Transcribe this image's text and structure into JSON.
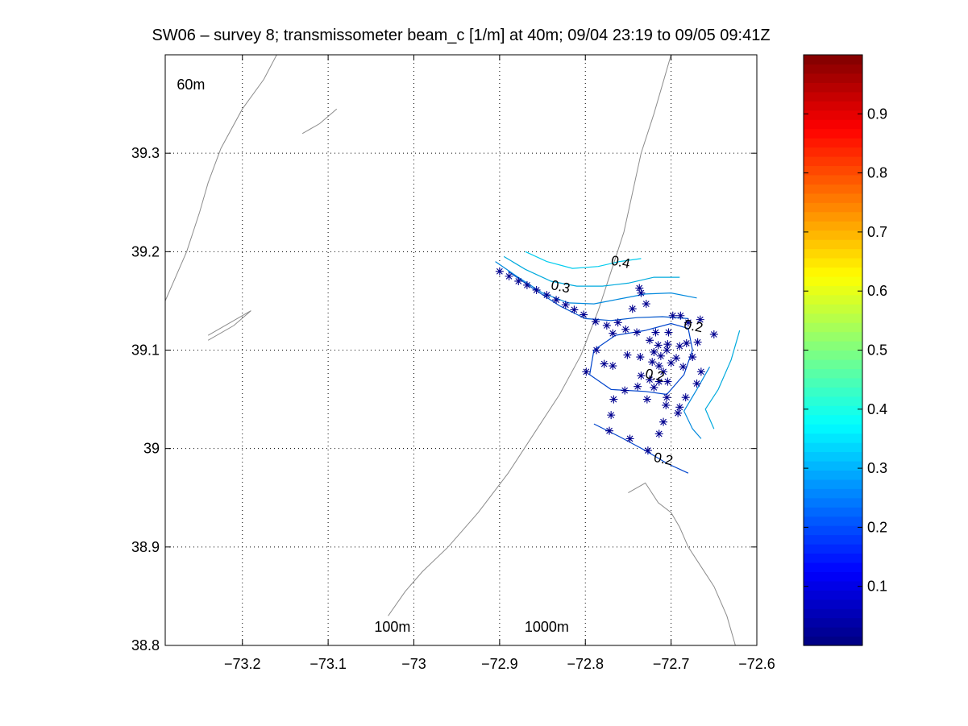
{
  "chart_data": {
    "type": "contour",
    "title": "SW06 – survey 8; transmissometer beam_c [1/m] at 40m; 09/04 23:19 to 09/05 09:41Z",
    "xlabel": "",
    "ylabel": "",
    "xlim": [
      -73.29,
      -72.6
    ],
    "ylim": [
      38.8,
      39.4
    ],
    "grid": true,
    "x_ticks": [
      -73.2,
      -73.1,
      -73,
      -72.9,
      -72.8,
      -72.7,
      -72.6
    ],
    "x_tick_labels": [
      "−73.2",
      "−73.1",
      "−73",
      "−72.9",
      "−72.8",
      "−72.7",
      "−72.6"
    ],
    "y_ticks": [
      38.8,
      38.9,
      39,
      39.1,
      39.2,
      39.3
    ],
    "y_tick_labels": [
      "38.8",
      "38.9",
      "39",
      "39.1",
      "39.2",
      "39.3"
    ],
    "colorbar": {
      "colormap": "jet",
      "range": [
        0,
        1
      ],
      "ticks": [
        0.1,
        0.2,
        0.3,
        0.4,
        0.5,
        0.6,
        0.7,
        0.8,
        0.9
      ],
      "tick_labels": [
        "0.1",
        "0.2",
        "0.3",
        "0.4",
        "0.5",
        "0.6",
        "0.7",
        "0.8",
        "0.9"
      ]
    },
    "isobath_labels": [
      {
        "text": "60m",
        "x": -73.26,
        "y": 39.365
      },
      {
        "text": "100m",
        "x": -73.025,
        "y": 38.814
      },
      {
        "text": "1000m",
        "x": -72.845,
        "y": 38.814
      }
    ],
    "isobaths": [
      {
        "name": "60m",
        "points": [
          [
            -73.29,
            39.15
          ],
          [
            -73.265,
            39.2
          ],
          [
            -73.25,
            39.24
          ],
          [
            -73.24,
            39.27
          ],
          [
            -73.225,
            39.305
          ],
          [
            -73.2,
            39.345
          ],
          [
            -73.175,
            39.375
          ],
          [
            -73.16,
            39.4
          ]
        ]
      },
      {
        "name": "shelf-shoal",
        "points": [
          [
            -73.24,
            39.11
          ],
          [
            -73.21,
            39.125
          ],
          [
            -73.19,
            39.14
          ],
          [
            -73.21,
            39.13
          ],
          [
            -73.24,
            39.115
          ]
        ]
      },
      {
        "name": "shelf-shoal-2",
        "points": [
          [
            -73.13,
            39.32
          ],
          [
            -73.11,
            39.33
          ],
          [
            -73.09,
            39.345
          ]
        ]
      },
      {
        "name": "100m",
        "points": [
          [
            -73.03,
            38.83
          ],
          [
            -73.01,
            38.855
          ],
          [
            -72.99,
            38.875
          ],
          [
            -72.96,
            38.9
          ],
          [
            -72.925,
            38.935
          ],
          [
            -72.89,
            38.975
          ],
          [
            -72.86,
            39.015
          ],
          [
            -72.83,
            39.055
          ],
          [
            -72.805,
            39.095
          ],
          [
            -72.785,
            39.14
          ],
          [
            -72.77,
            39.18
          ],
          [
            -72.755,
            39.22
          ],
          [
            -72.745,
            39.26
          ],
          [
            -72.735,
            39.3
          ],
          [
            -72.72,
            39.34
          ],
          [
            -72.71,
            39.37
          ],
          [
            -72.7,
            39.4
          ]
        ]
      },
      {
        "name": "1000m",
        "points": [
          [
            -72.75,
            38.955
          ],
          [
            -72.73,
            38.965
          ],
          [
            -72.715,
            38.945
          ],
          [
            -72.7,
            38.935
          ],
          [
            -72.69,
            38.92
          ],
          [
            -72.68,
            38.9
          ],
          [
            -72.665,
            38.88
          ],
          [
            -72.65,
            38.86
          ],
          [
            -72.635,
            38.83
          ],
          [
            -72.625,
            38.8
          ]
        ]
      }
    ],
    "contours": [
      {
        "level": 0.4,
        "color": "#00ccee",
        "points": [
          [
            -72.87,
            39.2
          ],
          [
            -72.845,
            39.19
          ],
          [
            -72.815,
            39.183
          ],
          [
            -72.785,
            39.185
          ],
          [
            -72.76,
            39.19
          ],
          [
            -72.735,
            39.193
          ]
        ]
      },
      {
        "level": 0.35,
        "color": "#00aadd",
        "points": [
          [
            -72.895,
            39.195
          ],
          [
            -72.87,
            39.182
          ],
          [
            -72.84,
            39.17
          ],
          [
            -72.81,
            39.165
          ],
          [
            -72.78,
            39.165
          ],
          [
            -72.75,
            39.168
          ],
          [
            -72.72,
            39.174
          ],
          [
            -72.69,
            39.174
          ]
        ]
      },
      {
        "level": 0.3,
        "color": "#0088dd",
        "points": [
          [
            -72.905,
            39.19
          ],
          [
            -72.88,
            39.175
          ],
          [
            -72.85,
            39.158
          ],
          [
            -72.82,
            39.148
          ],
          [
            -72.79,
            39.147
          ],
          [
            -72.76,
            39.152
          ],
          [
            -72.73,
            39.157
          ],
          [
            -72.7,
            39.158
          ],
          [
            -72.67,
            39.153
          ]
        ]
      },
      {
        "level": 0.25,
        "color": "#0055cc",
        "points": [
          [
            -72.89,
            39.18
          ],
          [
            -72.86,
            39.162
          ],
          [
            -72.83,
            39.145
          ],
          [
            -72.8,
            39.132
          ],
          [
            -72.77,
            39.13
          ],
          [
            -72.74,
            39.133
          ],
          [
            -72.71,
            39.134
          ],
          [
            -72.68,
            39.132
          ]
        ]
      },
      {
        "level": 0.2,
        "color": "#0044cc",
        "points": [
          [
            -72.73,
            39.12
          ],
          [
            -72.7,
            39.127
          ],
          [
            -72.68,
            39.122
          ],
          [
            -72.675,
            39.1
          ],
          [
            -72.685,
            39.075
          ],
          [
            -72.705,
            39.055
          ],
          [
            -72.73,
            39.058
          ],
          [
            -72.77,
            39.06
          ],
          [
            -72.795,
            39.075
          ],
          [
            -72.79,
            39.1
          ],
          [
            -72.765,
            39.115
          ],
          [
            -72.73,
            39.12
          ]
        ]
      },
      {
        "level": 0.2,
        "color": "#0044cc",
        "points": [
          [
            -72.79,
            39.025
          ],
          [
            -72.76,
            39.012
          ],
          [
            -72.73,
            38.998
          ],
          [
            -72.705,
            38.985
          ],
          [
            -72.68,
            38.975
          ]
        ]
      },
      {
        "level": 0.25,
        "color": "#0088dd",
        "points": [
          [
            -72.655,
            39.083
          ],
          [
            -72.67,
            39.06
          ],
          [
            -72.685,
            39.038
          ],
          [
            -72.675,
            39.02
          ],
          [
            -72.665,
            39.01
          ]
        ]
      },
      {
        "level": 0.3,
        "color": "#00aadd",
        "points": [
          [
            -72.62,
            39.12
          ],
          [
            -72.63,
            39.09
          ],
          [
            -72.645,
            39.06
          ],
          [
            -72.66,
            39.04
          ],
          [
            -72.65,
            39.02
          ]
        ]
      }
    ],
    "contour_labels": [
      {
        "text": "0.4",
        "x": -72.76,
        "y": 39.185
      },
      {
        "text": "0.3",
        "x": -72.83,
        "y": 39.16
      },
      {
        "text": "0.2",
        "x": -72.675,
        "y": 39.12
      },
      {
        "text": "0.2",
        "x": -72.72,
        "y": 39.07
      },
      {
        "text": "0.2",
        "x": -72.71,
        "y": 38.985
      }
    ],
    "stations": [
      [
        -72.9,
        39.18
      ],
      [
        -72.889,
        39.175
      ],
      [
        -72.878,
        39.17
      ],
      [
        -72.868,
        39.166
      ],
      [
        -72.857,
        39.161
      ],
      [
        -72.845,
        39.156
      ],
      [
        -72.834,
        39.151
      ],
      [
        -72.823,
        39.146
      ],
      [
        -72.813,
        39.141
      ],
      [
        -72.802,
        39.136
      ],
      [
        -72.788,
        39.129
      ],
      [
        -72.775,
        39.125
      ],
      [
        -72.737,
        39.163
      ],
      [
        -72.735,
        39.158
      ],
      [
        -72.729,
        39.147
      ],
      [
        -72.745,
        39.142
      ],
      [
        -72.762,
        39.128
      ],
      [
        -72.768,
        39.117
      ],
      [
        -72.753,
        39.121
      ],
      [
        -72.74,
        39.118
      ],
      [
        -72.698,
        39.135
      ],
      [
        -72.689,
        39.135
      ],
      [
        -72.666,
        39.131
      ],
      [
        -72.703,
        39.118
      ],
      [
        -72.68,
        39.128
      ],
      [
        -72.65,
        39.116
      ],
      [
        -72.718,
        39.118
      ],
      [
        -72.725,
        39.11
      ],
      [
        -72.715,
        39.105
      ],
      [
        -72.705,
        39.1
      ],
      [
        -72.712,
        39.094
      ],
      [
        -72.72,
        39.098
      ],
      [
        -72.736,
        39.093
      ],
      [
        -72.751,
        39.095
      ],
      [
        -72.787,
        39.1
      ],
      [
        -72.768,
        39.084
      ],
      [
        -72.778,
        39.086
      ],
      [
        -72.704,
        39.106
      ],
      [
        -72.682,
        39.107
      ],
      [
        -72.669,
        39.108
      ],
      [
        -72.69,
        39.104
      ],
      [
        -72.709,
        39.078
      ],
      [
        -72.725,
        39.07
      ],
      [
        -72.735,
        39.074
      ],
      [
        -72.754,
        39.059
      ],
      [
        -72.767,
        39.05
      ],
      [
        -72.7,
        39.087
      ],
      [
        -72.694,
        39.092
      ],
      [
        -72.714,
        39.084
      ],
      [
        -72.722,
        39.088
      ],
      [
        -72.714,
        39.068
      ],
      [
        -72.72,
        39.062
      ],
      [
        -72.739,
        39.063
      ],
      [
        -72.704,
        39.068
      ],
      [
        -72.686,
        39.083
      ],
      [
        -72.675,
        39.093
      ],
      [
        -72.728,
        39.05
      ],
      [
        -72.705,
        39.052
      ],
      [
        -72.683,
        39.052
      ],
      [
        -72.67,
        39.066
      ],
      [
        -72.665,
        39.078
      ],
      [
        -72.799,
        39.078
      ],
      [
        -72.706,
        39.044
      ],
      [
        -72.69,
        39.042
      ],
      [
        -72.692,
        39.036
      ],
      [
        -72.709,
        39.027
      ],
      [
        -72.77,
        39.034
      ],
      [
        -72.772,
        39.018
      ],
      [
        -72.714,
        39.015
      ],
      [
        -72.748,
        39.01
      ],
      [
        -72.727,
        38.998
      ]
    ]
  }
}
